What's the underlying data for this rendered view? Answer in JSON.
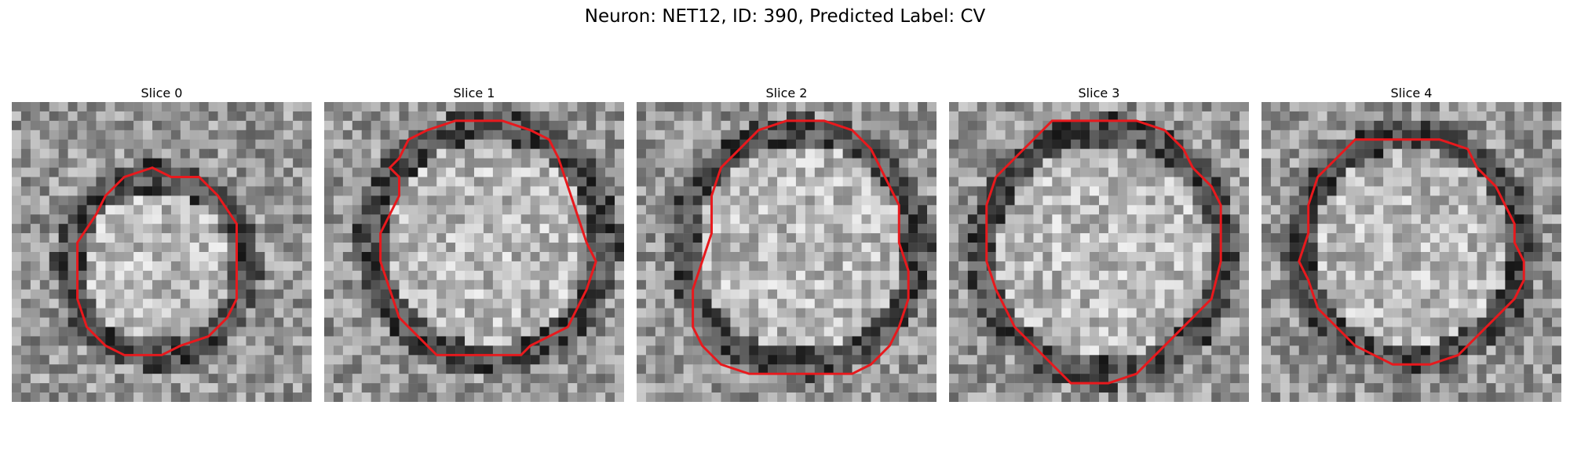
{
  "figure": {
    "title": "Neuron: NET12, ID: 390, Predicted Label: CV"
  },
  "panels": [
    {
      "title": "Slice 0",
      "seed": 11
    },
    {
      "title": "Slice 1",
      "seed": 23
    },
    {
      "title": "Slice 2",
      "seed": 37
    },
    {
      "title": "Slice 3",
      "seed": 41
    },
    {
      "title": "Slice 4",
      "seed": 59
    }
  ],
  "style": {
    "contour_color": "#e8191d",
    "colormap": "grayscale"
  }
}
